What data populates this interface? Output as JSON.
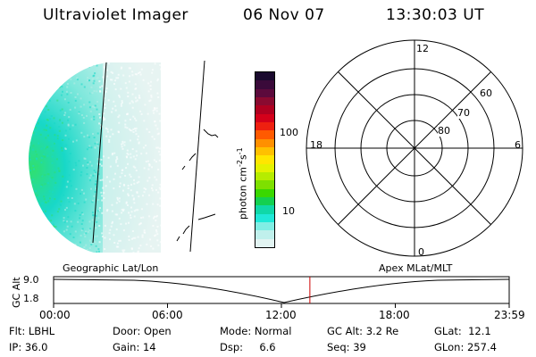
{
  "header": {
    "title": "Ultraviolet Imager",
    "date": "06 Nov 07",
    "time": "13:30:03 UT"
  },
  "colorbar": {
    "unit_label": "photon cm",
    "unit_sup1": "-2",
    "unit_mid": "s",
    "unit_sup2": "-1",
    "ticks": [
      "100",
      "10"
    ],
    "colors": [
      "#1a0a2e",
      "#3a0a3a",
      "#5c0a3c",
      "#8a0a30",
      "#b00020",
      "#d4001a",
      "#ee2010",
      "#ff5a00",
      "#ff9000",
      "#ffc000",
      "#ffe600",
      "#e4f200",
      "#b6ec00",
      "#7ee000",
      "#3ad800",
      "#14d050",
      "#10d8a8",
      "#20e8d8",
      "#80eee4",
      "#c0f0ec",
      "#e2f4f2"
    ]
  },
  "polar": {
    "clock_labels": [
      "12",
      "18",
      "6",
      "0"
    ],
    "lat_labels": [
      "60",
      "70",
      "80"
    ]
  },
  "timeline": {
    "left_label": "Geographic Lat/Lon",
    "right_label": "Apex MLat/MLT",
    "axis_title": "GC Alt",
    "y_ticks": [
      "9.0",
      "1.8"
    ],
    "x_ticks": [
      "00:00",
      "06:00",
      "12:00",
      "18:00",
      "23:59"
    ],
    "current_time_fraction": 0.5625
  },
  "info": {
    "flt_label": "Flt:",
    "flt": "LBHL",
    "ip_label": "IP:",
    "ip": "36.0",
    "door_label": "Door:",
    "door": "Open",
    "gain_label": "Gain:",
    "gain": "14",
    "mode_label": "Mode:",
    "mode": "Normal",
    "dsp_label": "Dsp:",
    "dsp": "6.6",
    "gcalt_label": "GC Alt:",
    "gcalt": "3.2 Re",
    "seq_label": "Seq:",
    "seq": "39",
    "glat_label": "GLat:",
    "glat": "12.1",
    "glon_label": "GLon:",
    "glon": "257.4"
  },
  "colors": {
    "marker": "#cc0000",
    "aurora_dark": "#18d8c8",
    "aurora_green": "#30e070",
    "aurora_light": "#b8ece6"
  }
}
